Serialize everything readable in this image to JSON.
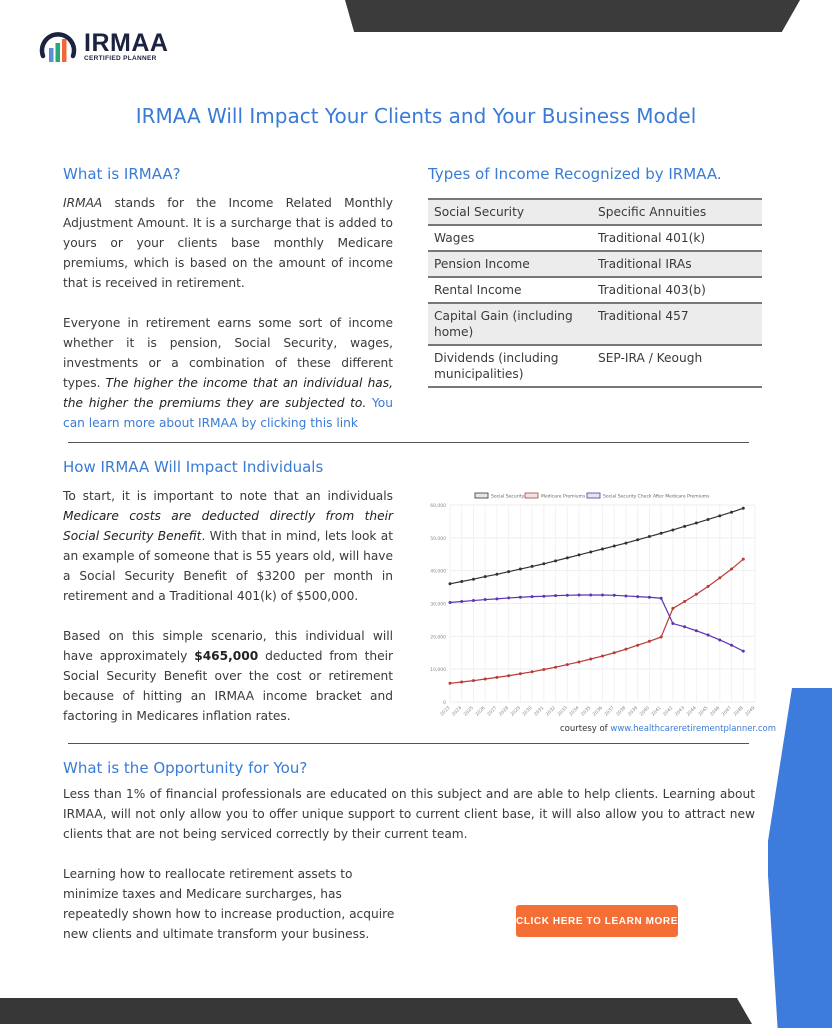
{
  "logo": {
    "name": "IRMAA",
    "tagline": "CERTIFIED PLANNER",
    "colors": [
      "#5b8fd6",
      "#2aa876",
      "#f0683a"
    ]
  },
  "title": "IRMAA Will Impact Your Clients and Your Business Model",
  "what": {
    "heading": "What is IRMAA?",
    "p1": {
      "a": "IRMAA",
      "b": " stands for the ",
      "c": "I",
      "d": "ncome ",
      "e": "R",
      "f": "elated ",
      "g": "M",
      "h": "onthly ",
      "i": "A",
      "j": "djustment ",
      "k": "A",
      "l": "mount. It is a surcharge that is added to yours or your clients base monthly Medicare premiums, which is based on the amount of income that is received  in retirement."
    },
    "p2": {
      "a": "Everyone in retirement earns some sort of income whether it is pension, Social Security, wages, investments or a combination of these different types. ",
      "b": "The higher the income that an individual has, the higher the premiums they are subjected to.",
      "c": " You can learn more about IRMAA by clicking this link"
    }
  },
  "types": {
    "heading": "Types of Income Recognized by IRMAA.",
    "rows": [
      [
        "Social Security",
        "Specific Annuities"
      ],
      [
        "Wages",
        "Traditional  401(k)"
      ],
      [
        "Pension Income",
        "Traditional IRAs"
      ],
      [
        "Rental Income",
        "Traditional 403(b)"
      ],
      [
        "Capital Gain (including home)",
        "Traditional 457"
      ],
      [
        "Dividends (including municipalities)",
        "SEP-IRA / Keough"
      ]
    ]
  },
  "impact": {
    "heading": "How IRMAA Will Impact Individuals",
    "p1": {
      "a": "To start, it is important to note that an individuals ",
      "b": "Medicare costs are deducted directly from their Social Security Benefit",
      "c": ". With that in mind, lets look at an example of someone that is 55 years old, will have a Social Security Benefit of $3200 per month in retirement and a Traditional 401(k) of $500,000."
    },
    "p2": {
      "a": "Based on this simple scenario, this individual will have approximately ",
      "b": "$465,000",
      "c": " deducted from their Social Security Benefit over the cost or retirement because of hitting an IRMAA income bracket and factoring in Medicares inflation rates."
    },
    "courtesy": "courtesy of ",
    "courtesy_link": "www.healthcareretirementplanner.com"
  },
  "opportunity": {
    "heading": "What is the Opportunity for You?",
    "p1": "Less than 1% of financial professionals are educated on this subject and are able to help clients. Learning about IRMAA, will not only allow you to offer unique support to current client base, it will also allow you to attract new clients that are not being serviced correctly by their current team.",
    "p2": "Learning how to reallocate retirement assets to minimize taxes and Medicare surcharges, has repeatedly shown how to increase production, acquire new clients and ultimate transform your business.",
    "button": "CLICK HERE TO LEARN MORE"
  },
  "colors": {
    "accent": "#3a7bd5",
    "button": "#f46f35",
    "dark": "#3b3b3b"
  },
  "chart_data": {
    "type": "line",
    "x": [
      2023,
      2024,
      2025,
      2026,
      2027,
      2028,
      2029,
      2030,
      2031,
      2032,
      2033,
      2034,
      2035,
      2036,
      2037,
      2038,
      2039,
      2040,
      2041,
      2042,
      2043,
      2044,
      2045,
      2046,
      2047,
      2048
    ],
    "xtick_labels": [
      "2023",
      "2024",
      "2025",
      "2026",
      "2027",
      "2028",
      "2029",
      "2030",
      "2031",
      "2032",
      "2033",
      "2034",
      "2035",
      "2036",
      "2037",
      "2038",
      "2039",
      "2040",
      "2041",
      "2042",
      "2043",
      "2044",
      "2045",
      "2046",
      "2047",
      "2048",
      "2049"
    ],
    "ylim": [
      0,
      60000
    ],
    "yticks": [
      "0",
      "10,000",
      "20,000",
      "30,000",
      "40,000",
      "50,000",
      "60,000"
    ],
    "grid": true,
    "legend": "top",
    "series": [
      {
        "name": "Social Security",
        "color": "#333333",
        "values": [
          36000,
          36700,
          37400,
          38200,
          38900,
          39700,
          40500,
          41300,
          42100,
          43000,
          43900,
          44800,
          45700,
          46600,
          47500,
          48400,
          49400,
          50400,
          51400,
          52400,
          53500,
          54500,
          55600,
          56700,
          57800,
          59000
        ]
      },
      {
        "name": "Medicare Premiums",
        "color": "#b83b36",
        "values": [
          5700,
          6100,
          6500,
          7000,
          7500,
          8000,
          8600,
          9200,
          9900,
          10600,
          11400,
          12200,
          13100,
          14000,
          15000,
          16100,
          17300,
          18500,
          19800,
          28500,
          30600,
          32800,
          35200,
          37800,
          40500,
          43500
        ]
      },
      {
        "name": "Social Security Check After Medicare Premiums",
        "color": "#5b35b5",
        "values": [
          30300,
          30600,
          30900,
          31200,
          31400,
          31700,
          31900,
          32100,
          32200,
          32400,
          32500,
          32600,
          32600,
          32600,
          32500,
          32300,
          32100,
          31900,
          31600,
          23900,
          22900,
          21700,
          20400,
          18900,
          17300,
          15500
        ]
      }
    ]
  }
}
